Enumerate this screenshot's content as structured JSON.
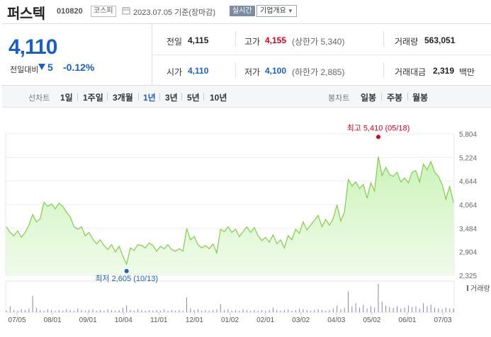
{
  "header": {
    "name": "퍼스텍",
    "code": "010820",
    "market": "코스피",
    "basis": "2023.07.05 기준(장마감)",
    "realtime": "실시간",
    "company_info": "기업개요"
  },
  "price": {
    "current": "4,110",
    "change_label": "전일대비",
    "change_amount": "5",
    "change_rate": "-0.12%"
  },
  "stats": {
    "prev_label": "전일",
    "prev": "4,115",
    "high_label": "고가",
    "high": "4,155",
    "upper_limit": "(상한가 5,340)",
    "volume_label": "거래량",
    "volume": "563,051",
    "open_label": "시가",
    "open": "4,110",
    "low_label": "저가",
    "low": "4,100",
    "lower_limit": "(하한가 2,885)",
    "amount_label": "거래대금",
    "amount": "2,319",
    "amount_unit": "백만"
  },
  "period_bar": {
    "line_label": "선차트",
    "line_items": [
      "1일",
      "1주일",
      "3개월",
      "1년",
      "3년",
      "5년",
      "10년"
    ],
    "active": "1년",
    "candle_label": "봉차트",
    "candle_items": [
      "일봉",
      "주봉",
      "월봉"
    ]
  },
  "chart_data": {
    "type": "area",
    "y_ticks": [
      "5,804",
      "5,224",
      "4,644",
      "4,064",
      "3,484",
      "2,904",
      "2,325"
    ],
    "ylim": [
      2325,
      5804
    ],
    "x_labels": [
      "07/05",
      "08/01",
      "09/01",
      "10/04",
      "11/01",
      "12/01",
      "01/02",
      "02/01",
      "03/02",
      "04/03",
      "05/02",
      "06/01",
      "07/03"
    ],
    "high_annotation": "최고 5,410 (05/18)",
    "low_annotation": "최저 2,605 (10/13)",
    "volume_legend": "거래량",
    "series": [
      {
        "values": [
          3520,
          3380,
          3300,
          3420,
          3260,
          3380,
          3560,
          3820,
          3640,
          3720,
          4120,
          4020,
          4080,
          3960,
          4100,
          4020,
          3880,
          3760,
          3520,
          3460,
          3520,
          3300,
          3380,
          3220,
          3100,
          3200,
          3060,
          2960,
          3080,
          2900,
          3040,
          2800,
          2605,
          3000,
          2940,
          3080,
          3060,
          3000,
          3120,
          3060,
          2920,
          3040,
          2980,
          3080,
          2960,
          2920,
          2980,
          2920,
          3480,
          3200,
          3280,
          3080,
          3000,
          3060,
          2980,
          3100,
          2880,
          3460,
          3400,
          3520,
          3380,
          3460,
          3280,
          3400,
          3520,
          3380,
          3500,
          3300,
          3180,
          3260,
          3140,
          3320,
          3100,
          3200,
          3000,
          3300,
          3200,
          3460,
          3360,
          3640,
          3440,
          3560,
          3680,
          3800,
          3520,
          3700,
          3560,
          3720,
          4060,
          3660,
          3880,
          4680,
          4520,
          4620,
          4460,
          4560,
          4220,
          4600,
          4400,
          5240,
          4780,
          4980,
          4800,
          4760,
          4860,
          4620,
          4720,
          4600,
          4860,
          4900,
          4620,
          5060,
          4920,
          5120,
          4860,
          4760,
          4560,
          4200,
          4520,
          4110
        ]
      }
    ],
    "volume": [
      2,
      8,
      3,
      2,
      4,
      3,
      5,
      22,
      6,
      3,
      2,
      4,
      3,
      2,
      3,
      2,
      4,
      3,
      2,
      5,
      3,
      2,
      3,
      4,
      2,
      3,
      2,
      4,
      3,
      2,
      3,
      6,
      9,
      3,
      2,
      4,
      3,
      2,
      3,
      2,
      3,
      2,
      4,
      2,
      3,
      2,
      3,
      2,
      20,
      5,
      3,
      4,
      2,
      3,
      2,
      3,
      4,
      11,
      3,
      4,
      2,
      3,
      2,
      4,
      3,
      2,
      3,
      2,
      3,
      2,
      3,
      6,
      3,
      2,
      3,
      4,
      2,
      3,
      5,
      4,
      3,
      2,
      3,
      4,
      3,
      2,
      3,
      5,
      9,
      4,
      6,
      28,
      8,
      12,
      6,
      10,
      5,
      8,
      6,
      38,
      14,
      9,
      7,
      6,
      8,
      5,
      6,
      9,
      7,
      8,
      5,
      12,
      8,
      10,
      6,
      5,
      4,
      6,
      5,
      5
    ]
  }
}
